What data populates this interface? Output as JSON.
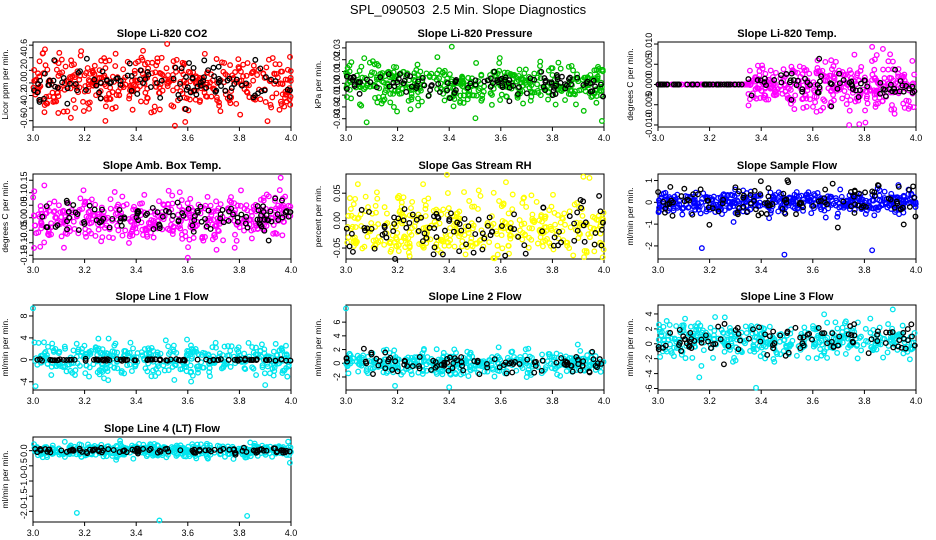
{
  "title": "SPL_090503  2.5 Min. Slope Diagnostics",
  "chart_data": [
    {
      "type": "scatter",
      "title": "Slope Li-820 CO2",
      "ylabel": "Licor ppm per min.",
      "color": "#ff0000",
      "xlim": [
        3.0,
        4.0
      ],
      "ylim": [
        -0.7,
        0.65
      ],
      "xticks": [
        "3.0",
        "3.2",
        "3.4",
        "3.6",
        "3.8",
        "4.0"
      ],
      "yticks": [
        -0.6,
        -0.4,
        -0.2,
        0.0,
        0.2,
        0.4,
        0.6
      ],
      "ytick_labels": [
        "-0.6",
        "-0.4",
        "-0.2",
        "0.0",
        "0.2",
        "0.4",
        "0.6"
      ],
      "spread": 0.22,
      "n_color": 420,
      "n_black": 110,
      "black_spread": 0.15,
      "ramp": false,
      "outliers": [
        [
          3.52,
          0.62
        ],
        [
          3.59,
          -0.62
        ],
        [
          3.55,
          -0.68
        ]
      ]
    },
    {
      "type": "scatter",
      "title": "Slope Li-820 Pressure",
      "ylabel": "kPa per min.",
      "color": "#00c000",
      "xlim": [
        3.0,
        4.0
      ],
      "ylim": [
        -0.037,
        0.035
      ],
      "xticks": [
        "3.0",
        "3.2",
        "3.4",
        "3.6",
        "3.8",
        "4.0"
      ],
      "yticks": [
        -0.03,
        -0.02,
        -0.01,
        0.0,
        0.01,
        0.02,
        0.03
      ],
      "ytick_labels": [
        "-0.03",
        "-0.02",
        "-0.01",
        "0.00",
        "0.01",
        "0.02",
        "0.03"
      ],
      "spread": 0.009,
      "n_color": 420,
      "n_black": 110,
      "black_spread": 0.005,
      "ramp": false,
      "outliers": [
        [
          3.08,
          -0.033
        ],
        [
          3.25,
          -0.022
        ],
        [
          3.41,
          0.031
        ]
      ]
    },
    {
      "type": "scatter",
      "title": "Slope Li-820 Temp.",
      "ylabel": "degrees C per min.",
      "color": "#ff00ff",
      "xlim": [
        3.0,
        4.0
      ],
      "ylim": [
        -0.0105,
        0.0105
      ],
      "xticks": [
        "3.0",
        "3.2",
        "3.4",
        "3.6",
        "3.8",
        "4.0"
      ],
      "yticks": [
        -0.01,
        -0.005,
        0.0,
        0.005,
        0.01
      ],
      "ytick_labels": [
        "-0.010",
        "-0.005",
        "0.000",
        "0.005",
        "0.010"
      ],
      "spread": 0.0035,
      "n_color": 380,
      "n_black": 110,
      "black_spread": 0.002,
      "ramp": true,
      "outliers": [
        [
          3.78,
          -0.0098
        ],
        [
          3.83,
          0.0093
        ]
      ]
    },
    {
      "type": "scatter",
      "title": "Slope Amb. Box Temp.",
      "ylabel": "degrees C per min.",
      "color": "#ff00ff",
      "xlim": [
        3.0,
        4.0
      ],
      "ylim": [
        -0.165,
        0.175
      ],
      "xticks": [
        "3.0",
        "3.2",
        "3.4",
        "3.6",
        "3.8",
        "4.0"
      ],
      "yticks": [
        -0.15,
        -0.1,
        -0.05,
        0.0,
        0.05,
        0.1,
        0.15
      ],
      "ytick_labels": [
        "-0.15",
        "-0.10",
        "-0.05",
        "0.00",
        "0.05",
        "0.10",
        "0.15"
      ],
      "spread": 0.05,
      "n_color": 420,
      "n_black": 110,
      "black_spread": 0.03,
      "ramp": false,
      "outliers": [
        [
          3.6,
          -0.16
        ],
        [
          3.96,
          0.16
        ],
        [
          3.12,
          -0.12
        ]
      ]
    },
    {
      "type": "scatter",
      "title": "Slope Gas Stream RH",
      "ylabel": "percent per min.",
      "color": "#ffff00",
      "xlim": [
        3.0,
        4.0
      ],
      "ylim": [
        -0.07,
        0.085
      ],
      "xticks": [
        "3.0",
        "3.2",
        "3.4",
        "3.6",
        "3.8",
        "4.0"
      ],
      "yticks": [
        -0.05,
        0.0,
        0.05
      ],
      "ytick_labels": [
        "-0.05",
        "0.00",
        "0.05"
      ],
      "spread": 0.03,
      "n_color": 400,
      "n_black": 100,
      "black_spread": 0.025,
      "center": -0.015,
      "ramp": false,
      "outliers": [
        [
          3.92,
          0.08
        ],
        [
          3.62,
          0.07
        ]
      ]
    },
    {
      "type": "scatter",
      "title": "Slope Sample Flow",
      "ylabel": "ml/min per min.",
      "color": "#0000ff",
      "xlim": [
        3.0,
        4.0
      ],
      "ylim": [
        -2.6,
        1.3
      ],
      "xticks": [
        "3.0",
        "3.2",
        "3.4",
        "3.6",
        "3.8",
        "4.0"
      ],
      "yticks": [
        -2,
        -1,
        0,
        1
      ],
      "ytick_labels": [
        "-2",
        "-1",
        "0",
        "1"
      ],
      "spread": 0.25,
      "n_color": 420,
      "n_black": 110,
      "black_spread": 0.45,
      "ramp": false,
      "outliers": [
        [
          3.17,
          -2.1
        ],
        [
          3.49,
          -2.4
        ],
        [
          3.83,
          -2.2
        ]
      ]
    },
    {
      "type": "scatter",
      "title": "Slope Line 1 Flow",
      "ylabel": "ml/min per min.",
      "color": "#00e5ee",
      "xlim": [
        3.0,
        4.0
      ],
      "ylim": [
        -5.5,
        10.0
      ],
      "xticks": [
        "3.0",
        "3.2",
        "3.4",
        "3.6",
        "3.8",
        "4.0"
      ],
      "yticks": [
        -4,
        0,
        4,
        8
      ],
      "ytick_labels": [
        "-4",
        "0",
        "4",
        "8"
      ],
      "spread": 1.6,
      "n_color": 380,
      "n_black": 90,
      "black_spread": 0.08,
      "ramp": false,
      "outliers": [
        [
          3.0,
          9.4
        ],
        [
          3.01,
          -4.8
        ],
        [
          3.9,
          -4.6
        ]
      ]
    },
    {
      "type": "scatter",
      "title": "Slope Line 2 Flow",
      "ylabel": "ml/min per min.",
      "color": "#00e5ee",
      "xlim": [
        3.0,
        4.0
      ],
      "ylim": [
        -3.9,
        8.5
      ],
      "xticks": [
        "3.0",
        "3.2",
        "3.4",
        "3.6",
        "3.8",
        "4.0"
      ],
      "yticks": [
        -2,
        0,
        2,
        4,
        6
      ],
      "ytick_labels": [
        "-2",
        "0",
        "2",
        "4",
        "6"
      ],
      "spread": 0.9,
      "n_color": 380,
      "n_black": 100,
      "black_spread": 0.7,
      "ramp": false,
      "outliers": [
        [
          3.0,
          8.0
        ],
        [
          3.19,
          -3.3
        ],
        [
          3.4,
          -3.5
        ]
      ]
    },
    {
      "type": "scatter",
      "title": "Slope Line 3 Flow",
      "ylabel": "ml/min per min.",
      "color": "#00e5ee",
      "xlim": [
        3.0,
        4.0
      ],
      "ylim": [
        -6.2,
        5.2
      ],
      "xticks": [
        "3.0",
        "3.2",
        "3.4",
        "3.6",
        "3.8",
        "4.0"
      ],
      "yticks": [
        -6,
        -4,
        -2,
        0,
        2,
        4
      ],
      "ytick_labels": [
        "-6",
        "-4",
        "-2",
        "0",
        "2",
        "4"
      ],
      "spread": 1.2,
      "n_color": 380,
      "n_black": 100,
      "black_spread": 1.0,
      "center": 0.5,
      "ramp": false,
      "outliers": [
        [
          3.38,
          -5.9
        ],
        [
          3.16,
          -4.5
        ],
        [
          3.91,
          4.6
        ]
      ]
    },
    {
      "type": "scatter",
      "title": "Slope Line 4 (LT) Flow",
      "ylabel": "ml/min per min.",
      "color": "#00e5ee",
      "xlim": [
        3.0,
        4.0
      ],
      "ylim": [
        -2.35,
        0.45
      ],
      "xticks": [
        "3.0",
        "3.2",
        "3.4",
        "3.6",
        "3.8",
        "4.0"
      ],
      "yticks": [
        -2.0,
        -1.5,
        -1.0,
        -0.5,
        0.0
      ],
      "ytick_labels": [
        "-2.0",
        "-1.5",
        "-1.0",
        "-0.5",
        "0.0"
      ],
      "spread": 0.11,
      "n_color": 420,
      "n_black": 100,
      "black_spread": 0.05,
      "ramp": false,
      "outliers": [
        [
          3.17,
          -2.05
        ],
        [
          3.49,
          -2.3
        ],
        [
          3.83,
          -2.15
        ]
      ]
    }
  ]
}
